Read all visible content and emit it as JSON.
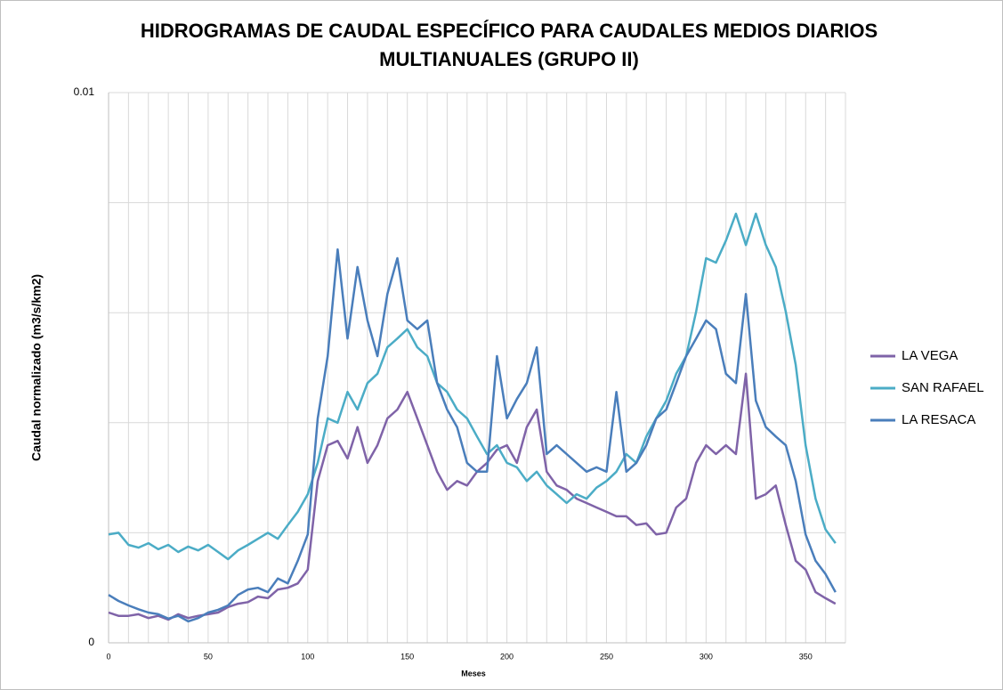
{
  "chart_data": {
    "type": "line",
    "title": [
      "HIDROGRAMAS DE CAUDAL ESPECÍFICO PARA CAUDALES MEDIOS DIARIOS",
      "MULTIANUALES (GRUPO II)"
    ],
    "xlabel": "Meses",
    "ylabel": "Caudal normalizado (m3/s/km2)",
    "x": [
      0,
      5,
      10,
      15,
      20,
      25,
      30,
      35,
      40,
      45,
      50,
      55,
      60,
      65,
      70,
      75,
      80,
      85,
      90,
      95,
      100,
      105,
      110,
      115,
      120,
      125,
      130,
      135,
      140,
      145,
      150,
      155,
      160,
      165,
      170,
      175,
      180,
      185,
      190,
      195,
      200,
      205,
      210,
      215,
      220,
      225,
      230,
      235,
      240,
      245,
      250,
      255,
      260,
      265,
      270,
      275,
      280,
      285,
      290,
      295,
      300,
      305,
      310,
      315,
      320,
      325,
      330,
      335,
      340,
      345,
      350,
      355,
      360,
      365
    ],
    "series": [
      {
        "name": "LA VEGA",
        "color": "#7f63a8",
        "values": [
          0.00055,
          0.00049,
          0.00049,
          0.00052,
          0.00045,
          0.00049,
          0.00042,
          0.00052,
          0.00045,
          0.00049,
          0.00052,
          0.00055,
          0.00065,
          0.00071,
          0.00074,
          0.00084,
          0.00081,
          0.00097,
          0.001,
          0.00108,
          0.00133,
          0.00294,
          0.00359,
          0.00367,
          0.00335,
          0.00392,
          0.00327,
          0.00359,
          0.00408,
          0.00424,
          0.00456,
          0.00408,
          0.00359,
          0.00311,
          0.00278,
          0.00294,
          0.00286,
          0.00311,
          0.00327,
          0.00351,
          0.00359,
          0.00327,
          0.00392,
          0.00424,
          0.00311,
          0.00286,
          0.00278,
          0.00262,
          0.00254,
          0.00246,
          0.00238,
          0.0023,
          0.0023,
          0.00214,
          0.00217,
          0.00197,
          0.002,
          0.00246,
          0.00262,
          0.00327,
          0.00359,
          0.00343,
          0.00359,
          0.00343,
          0.00489,
          0.00262,
          0.0027,
          0.00286,
          0.00214,
          0.00149,
          0.00133,
          0.00092,
          0.00081,
          0.00071
        ]
      },
      {
        "name": "SAN RAFAEL",
        "color": "#4bacc6",
        "values": [
          0.00197,
          0.002,
          0.00178,
          0.00173,
          0.00181,
          0.0017,
          0.00178,
          0.00165,
          0.00175,
          0.00168,
          0.00178,
          0.00165,
          0.00152,
          0.00168,
          0.00178,
          0.00189,
          0.002,
          0.00189,
          0.00214,
          0.00238,
          0.0027,
          0.00327,
          0.00408,
          0.004,
          0.00456,
          0.00424,
          0.00472,
          0.00489,
          0.00537,
          0.00553,
          0.0057,
          0.00537,
          0.00521,
          0.00472,
          0.00456,
          0.00424,
          0.00408,
          0.00375,
          0.00343,
          0.00359,
          0.00327,
          0.00319,
          0.00294,
          0.00311,
          0.00286,
          0.0027,
          0.00254,
          0.0027,
          0.00262,
          0.00282,
          0.00294,
          0.00311,
          0.00343,
          0.00327,
          0.00375,
          0.00408,
          0.0044,
          0.00489,
          0.00521,
          0.00602,
          0.00699,
          0.00691,
          0.00731,
          0.0078,
          0.00723,
          0.0078,
          0.00723,
          0.00683,
          0.00602,
          0.00505,
          0.00359,
          0.00262,
          0.00206,
          0.00181
        ]
      },
      {
        "name": "LA RESACA",
        "color": "#4a7ebb",
        "values": [
          0.00087,
          0.00076,
          0.00068,
          0.00061,
          0.00055,
          0.00052,
          0.00044,
          0.00049,
          0.00039,
          0.00045,
          0.00055,
          0.0006,
          0.00068,
          0.00087,
          0.00097,
          0.001,
          0.00092,
          0.00117,
          0.00108,
          0.00149,
          0.00197,
          0.00408,
          0.00521,
          0.00715,
          0.00553,
          0.00683,
          0.00586,
          0.00521,
          0.00634,
          0.00699,
          0.00586,
          0.0057,
          0.00586,
          0.00472,
          0.00424,
          0.00392,
          0.00327,
          0.00311,
          0.00311,
          0.00521,
          0.00408,
          0.00443,
          0.00472,
          0.00537,
          0.00343,
          0.00359,
          0.00343,
          0.00327,
          0.00311,
          0.00319,
          0.00311,
          0.00456,
          0.00311,
          0.00327,
          0.00359,
          0.00408,
          0.00424,
          0.00472,
          0.00521,
          0.00553,
          0.00586,
          0.0057,
          0.00489,
          0.00472,
          0.00634,
          0.0044,
          0.00392,
          0.00375,
          0.00359,
          0.00294,
          0.00197,
          0.00149,
          0.00125,
          0.00092
        ]
      }
    ],
    "xlim": [
      0,
      370
    ],
    "xticks": [
      0,
      50,
      100,
      150,
      200,
      250,
      300,
      350
    ],
    "xgrid": [
      10,
      20,
      30,
      40,
      50,
      60,
      70,
      80,
      90,
      100,
      110,
      120,
      130,
      140,
      150,
      160,
      170,
      180,
      190,
      200,
      210,
      220,
      230,
      240,
      250,
      260,
      270,
      280,
      290,
      300,
      310,
      320,
      330,
      340,
      350,
      360,
      370
    ],
    "ylim": [
      0,
      0.01
    ],
    "yticks": [
      0,
      0.01
    ],
    "ygrid": [
      0.002,
      0.004,
      0.006,
      0.008,
      0.01
    ],
    "legend": "right"
  }
}
